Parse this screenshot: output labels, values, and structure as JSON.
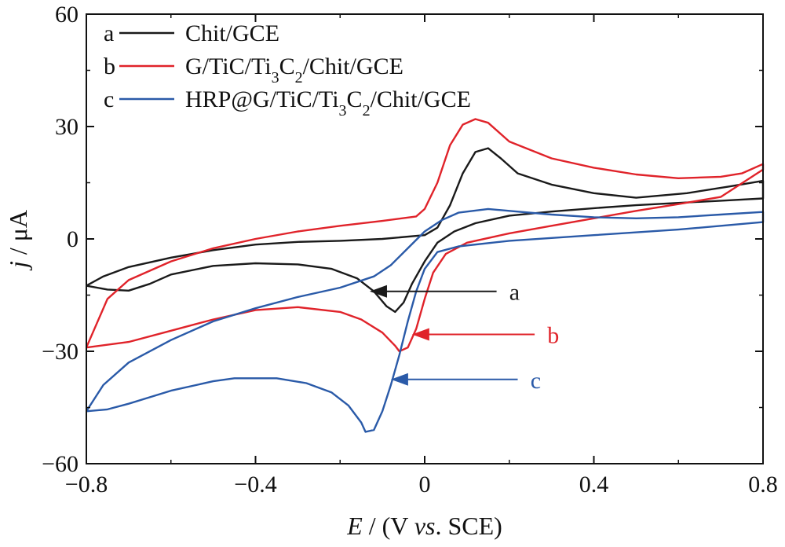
{
  "chart_data": {
    "type": "line",
    "xlabel": {
      "var": "E",
      "unit": " / (V ",
      "vs": "vs",
      "rest": ". SCE)"
    },
    "ylabel": {
      "var": "j",
      "unit": " / μA"
    },
    "xlim": [
      -0.8,
      0.8
    ],
    "ylim": [
      -60,
      60
    ],
    "x_ticks": [
      -0.8,
      -0.4,
      0,
      0.4,
      0.8
    ],
    "x_tick_labels": [
      "−0.8",
      "−0.4",
      "0",
      "0.4",
      "0.8"
    ],
    "y_ticks": [
      -60,
      -30,
      0,
      30,
      60
    ],
    "y_tick_labels": [
      "−60",
      "−30",
      "0",
      "30",
      "60"
    ],
    "grid": false,
    "legend_position": "top-left",
    "series": [
      {
        "key": "a",
        "label_parts": [
          [
            "Chit/GCE",
            false
          ]
        ],
        "color": "#1a1a1a",
        "points": [
          [
            -0.8,
            -12.5
          ],
          [
            -0.75,
            -13.5
          ],
          [
            -0.7,
            -13.8
          ],
          [
            -0.65,
            -12
          ],
          [
            -0.6,
            -9.5
          ],
          [
            -0.5,
            -7.2
          ],
          [
            -0.4,
            -6.5
          ],
          [
            -0.3,
            -6.8
          ],
          [
            -0.22,
            -8
          ],
          [
            -0.16,
            -10.5
          ],
          [
            -0.12,
            -14
          ],
          [
            -0.09,
            -18
          ],
          [
            -0.07,
            -19.5
          ],
          [
            -0.05,
            -17
          ],
          [
            -0.03,
            -12
          ],
          [
            0.0,
            -6
          ],
          [
            0.03,
            -1
          ],
          [
            0.07,
            2
          ],
          [
            0.12,
            4.2
          ],
          [
            0.2,
            6.2
          ],
          [
            0.3,
            7.3
          ],
          [
            0.4,
            8.2
          ],
          [
            0.5,
            9
          ],
          [
            0.6,
            9.6
          ],
          [
            0.7,
            10.2
          ],
          [
            0.8,
            10.8
          ],
          [
            0.8,
            15.5
          ],
          [
            0.72,
            14
          ],
          [
            0.62,
            12.2
          ],
          [
            0.5,
            11
          ],
          [
            0.4,
            12.2
          ],
          [
            0.3,
            14.5
          ],
          [
            0.22,
            17.5
          ],
          [
            0.18,
            21.5
          ],
          [
            0.15,
            24.2
          ],
          [
            0.12,
            23.2
          ],
          [
            0.09,
            17.5
          ],
          [
            0.06,
            9
          ],
          [
            0.03,
            3
          ],
          [
            0.0,
            1
          ],
          [
            -0.1,
            0
          ],
          [
            -0.2,
            -0.5
          ],
          [
            -0.3,
            -0.8
          ],
          [
            -0.4,
            -1.5
          ],
          [
            -0.5,
            -3
          ],
          [
            -0.6,
            -5
          ],
          [
            -0.7,
            -7.5
          ],
          [
            -0.76,
            -10
          ],
          [
            -0.8,
            -12.5
          ]
        ]
      },
      {
        "key": "b",
        "label_parts": [
          [
            "G/TiC/Ti",
            false
          ],
          [
            "3",
            true
          ],
          [
            "C",
            false
          ],
          [
            "2",
            true
          ],
          [
            "/Chit/GCE",
            false
          ]
        ],
        "color": "#e0232a",
        "points": [
          [
            -0.8,
            -29
          ],
          [
            -0.7,
            -27.5
          ],
          [
            -0.6,
            -24.5
          ],
          [
            -0.5,
            -21.5
          ],
          [
            -0.4,
            -19
          ],
          [
            -0.3,
            -18.2
          ],
          [
            -0.2,
            -19.5
          ],
          [
            -0.15,
            -21.5
          ],
          [
            -0.1,
            -25
          ],
          [
            -0.07,
            -28.5
          ],
          [
            -0.06,
            -30
          ],
          [
            -0.04,
            -29
          ],
          [
            -0.02,
            -24
          ],
          [
            0.0,
            -16
          ],
          [
            0.02,
            -9
          ],
          [
            0.05,
            -4
          ],
          [
            0.1,
            -1
          ],
          [
            0.2,
            1.5
          ],
          [
            0.3,
            3.5
          ],
          [
            0.4,
            5.5
          ],
          [
            0.5,
            7.5
          ],
          [
            0.6,
            9.3
          ],
          [
            0.7,
            11.2
          ],
          [
            0.8,
            18.5
          ],
          [
            0.8,
            20
          ],
          [
            0.75,
            17.5
          ],
          [
            0.7,
            16.6
          ],
          [
            0.6,
            16.2
          ],
          [
            0.5,
            17.2
          ],
          [
            0.4,
            19
          ],
          [
            0.3,
            21.5
          ],
          [
            0.2,
            26
          ],
          [
            0.15,
            31
          ],
          [
            0.12,
            32
          ],
          [
            0.09,
            30.5
          ],
          [
            0.06,
            25
          ],
          [
            0.03,
            15
          ],
          [
            0.0,
            8
          ],
          [
            -0.02,
            6
          ],
          [
            -0.1,
            4.8
          ],
          [
            -0.2,
            3.5
          ],
          [
            -0.3,
            2
          ],
          [
            -0.4,
            0
          ],
          [
            -0.5,
            -2.5
          ],
          [
            -0.6,
            -6
          ],
          [
            -0.7,
            -11
          ],
          [
            -0.75,
            -16
          ],
          [
            -0.8,
            -29
          ]
        ]
      },
      {
        "key": "c",
        "label_parts": [
          [
            "HRP@G/TiC/Ti",
            false
          ],
          [
            "3",
            true
          ],
          [
            "C",
            false
          ],
          [
            "2",
            true
          ],
          [
            "/Chit/GCE",
            false
          ]
        ],
        "color": "#2a5aa8",
        "points": [
          [
            -0.8,
            -46
          ],
          [
            -0.75,
            -45.5
          ],
          [
            -0.7,
            -44
          ],
          [
            -0.6,
            -40.5
          ],
          [
            -0.5,
            -38
          ],
          [
            -0.45,
            -37.2
          ],
          [
            -0.35,
            -37.2
          ],
          [
            -0.28,
            -38.5
          ],
          [
            -0.22,
            -41
          ],
          [
            -0.18,
            -44.5
          ],
          [
            -0.15,
            -49
          ],
          [
            -0.14,
            -51.5
          ],
          [
            -0.12,
            -51
          ],
          [
            -0.1,
            -46
          ],
          [
            -0.08,
            -39
          ],
          [
            -0.06,
            -31
          ],
          [
            -0.04,
            -22
          ],
          [
            -0.02,
            -14
          ],
          [
            0.0,
            -8
          ],
          [
            0.03,
            -3.5
          ],
          [
            0.08,
            -2
          ],
          [
            0.2,
            -0.5
          ],
          [
            0.4,
            1
          ],
          [
            0.6,
            2.5
          ],
          [
            0.8,
            4.5
          ],
          [
            0.8,
            7.2
          ],
          [
            0.7,
            6.5
          ],
          [
            0.6,
            5.8
          ],
          [
            0.5,
            5.5
          ],
          [
            0.4,
            5.8
          ],
          [
            0.3,
            6.5
          ],
          [
            0.2,
            7.5
          ],
          [
            0.15,
            8
          ],
          [
            0.08,
            7
          ],
          [
            0.04,
            5
          ],
          [
            0.0,
            2
          ],
          [
            -0.04,
            -2.5
          ],
          [
            -0.08,
            -7
          ],
          [
            -0.12,
            -10
          ],
          [
            -0.2,
            -13
          ],
          [
            -0.3,
            -15.5
          ],
          [
            -0.4,
            -18.5
          ],
          [
            -0.5,
            -22
          ],
          [
            -0.6,
            -27
          ],
          [
            -0.7,
            -33
          ],
          [
            -0.76,
            -39
          ],
          [
            -0.8,
            -46
          ]
        ]
      }
    ],
    "annotations": [
      {
        "label": "a",
        "color": "#1a1a1a",
        "target": [
          -0.13,
          -14
        ],
        "tail": [
          0.17,
          -14
        ],
        "text_at": [
          0.2,
          -14
        ]
      },
      {
        "label": "b",
        "color": "#e0232a",
        "target": [
          -0.03,
          -25.5
        ],
        "tail": [
          0.26,
          -25.5
        ],
        "text_at": [
          0.29,
          -25.5
        ]
      },
      {
        "label": "c",
        "color": "#2a5aa8",
        "target": [
          -0.08,
          -37.5
        ],
        "tail": [
          0.22,
          -37.5
        ],
        "text_at": [
          0.25,
          -37.5
        ]
      }
    ]
  }
}
